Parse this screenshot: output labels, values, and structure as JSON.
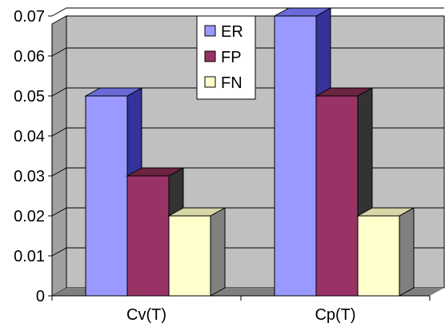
{
  "chart_data": {
    "type": "bar",
    "style": "3d-clustered-column",
    "title": "",
    "xlabel": "",
    "ylabel": "",
    "categories": [
      "Cv(T)",
      "Cp(T)"
    ],
    "ylim": [
      0,
      0.07
    ],
    "yticks": [
      "0",
      "0.01",
      "0.02",
      "0.03",
      "0.04",
      "0.05",
      "0.06",
      "0.07"
    ],
    "grid": true,
    "legend_position": "top-center",
    "series": [
      {
        "name": "ER",
        "values": [
          0.05,
          0.07
        ],
        "color": "#9999ff",
        "top_color": "#6a6ad8",
        "side_color": "#333399"
      },
      {
        "name": "FP",
        "values": [
          0.03,
          0.05
        ],
        "color": "#993366",
        "top_color": "#6b2440",
        "side_color": "#333333"
      },
      {
        "name": "FN",
        "values": [
          0.02,
          0.02
        ],
        "color": "#ffffcc",
        "top_color": "#d6d6a6",
        "side_color": "#808080"
      }
    ],
    "colors": {
      "wall": "#c0c0c0",
      "wall_side": "#a0a0a0",
      "floor": "#808080",
      "gridline": "#000000"
    }
  }
}
